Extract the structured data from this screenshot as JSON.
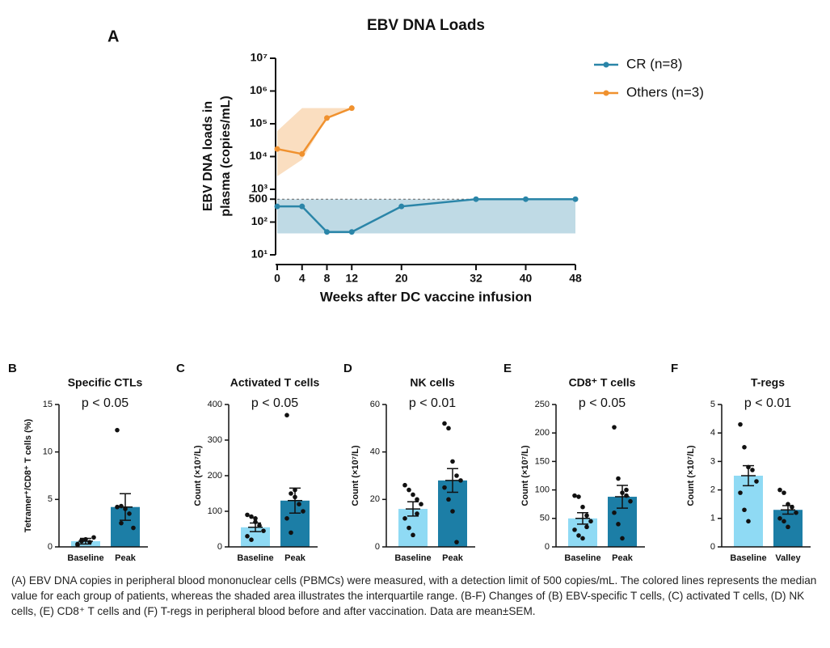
{
  "chart_data": [
    {
      "type": "line",
      "panel": "A",
      "title": "EBV DNA Loads",
      "x_label": "Weeks after DC vaccine infusion",
      "y_label": [
        "EBV DNA loads in",
        "plasma (copies/mL)"
      ],
      "x": [
        0,
        4,
        8,
        12,
        20,
        32,
        40,
        48
      ],
      "xlim": [
        0,
        48
      ],
      "xticks": [
        0,
        4,
        8,
        12,
        20,
        32,
        40,
        48
      ],
      "log_y": true,
      "ylim": [
        10,
        10000000
      ],
      "yticks": [
        {
          "value": 10,
          "label": "10¹"
        },
        {
          "value": 100,
          "label": "10²"
        },
        500,
        {
          "value": 1000,
          "label": "10³"
        },
        {
          "value": 10000,
          "label": "10⁴"
        },
        {
          "value": 100000,
          "label": "10⁵"
        },
        {
          "value": 1000000,
          "label": "10⁶"
        },
        {
          "value": 10000000,
          "label": "10⁷"
        }
      ],
      "detection_limit": 500,
      "legend": "upper right",
      "series": [
        {
          "name": "CR (n=8)",
          "color": "#2a85a8",
          "values": [
            300,
            300,
            50,
            50,
            300,
            500,
            500,
            500
          ],
          "band_lower": [
            45,
            45,
            45,
            45,
            45,
            45,
            45,
            45
          ],
          "band_upper": [
            500,
            500,
            500,
            500,
            500,
            500,
            500,
            500
          ]
        },
        {
          "name": "Others (n=3)",
          "color": "#f0912e",
          "values": [
            17000,
            12000,
            150000,
            300000,
            null,
            null,
            null,
            null
          ],
          "band_lower": [
            2500,
            8000,
            150000,
            300000,
            null,
            null,
            null,
            null
          ],
          "band_upper": [
            60000,
            300000,
            300000,
            300000,
            null,
            null,
            null,
            null
          ]
        }
      ]
    },
    {
      "type": "bar",
      "panel": "B",
      "title": "Specific CTLs",
      "annotation": "p < 0.05",
      "y_label": "Tetramer⁺/CD8⁺ T cells (%)",
      "categories": [
        "Baseline",
        "Peak"
      ],
      "colors": [
        "#8fdaf4",
        "#1c7ea6"
      ],
      "values": [
        0.6,
        4.2
      ],
      "errors": [
        0.3,
        1.4
      ],
      "points": [
        [
          0.3,
          0.6,
          0.8,
          0.5,
          1.0,
          0.2,
          0.7
        ],
        [
          12.3,
          4.3,
          4.0,
          3.5,
          2.0,
          4.2,
          2.5
        ]
      ],
      "ylim": [
        0,
        15
      ],
      "yticks": [
        0,
        5,
        10,
        15
      ]
    },
    {
      "type": "bar",
      "panel": "C",
      "title": "Activated T cells",
      "annotation": "p < 0.05",
      "y_label": "Count (×10⁷/L)",
      "categories": [
        "Baseline",
        "Peak"
      ],
      "colors": [
        "#8fdaf4",
        "#1c7ea6"
      ],
      "values": [
        55,
        130
      ],
      "errors": [
        12,
        35
      ],
      "points": [
        [
          90,
          85,
          70,
          60,
          45,
          30,
          20,
          80
        ],
        [
          370,
          150,
          140,
          120,
          100,
          80,
          40,
          160
        ]
      ],
      "ylim": [
        0,
        400
      ],
      "yticks": [
        0,
        100,
        200,
        300,
        400
      ]
    },
    {
      "type": "bar",
      "panel": "D",
      "title": "NK cells",
      "annotation": "p < 0.01",
      "y_label": "Count (×10⁷/L)",
      "categories": [
        "Baseline",
        "Peak"
      ],
      "colors": [
        "#8fdaf4",
        "#1c7ea6"
      ],
      "values": [
        16,
        28
      ],
      "errors": [
        3,
        5
      ],
      "points": [
        [
          26,
          24,
          22,
          20,
          18,
          12,
          8,
          5,
          14
        ],
        [
          52,
          50,
          36,
          30,
          28,
          25,
          20,
          15,
          2
        ]
      ],
      "ylim": [
        0,
        60
      ],
      "yticks": [
        0,
        20,
        40,
        60
      ]
    },
    {
      "type": "bar",
      "panel": "E",
      "title": "CD8⁺ T cells",
      "annotation": "p < 0.05",
      "y_label": "Count (×10⁷/L)",
      "categories": [
        "Baseline",
        "Peak"
      ],
      "colors": [
        "#8fdaf4",
        "#1c7ea6"
      ],
      "values": [
        50,
        88
      ],
      "errors": [
        10,
        20
      ],
      "points": [
        [
          90,
          88,
          70,
          55,
          45,
          30,
          20,
          15,
          35
        ],
        [
          210,
          120,
          95,
          90,
          80,
          60,
          40,
          15,
          100
        ]
      ],
      "ylim": [
        0,
        250
      ],
      "yticks": [
        0,
        50,
        100,
        150,
        200,
        250
      ]
    },
    {
      "type": "bar",
      "panel": "F",
      "title": "T-regs",
      "annotation": "p < 0.01",
      "y_label": "Count (×10⁷/L)",
      "categories": [
        "Baseline",
        "Valley"
      ],
      "colors": [
        "#8fdaf4",
        "#1c7ea6"
      ],
      "values": [
        2.5,
        1.3
      ],
      "errors": [
        0.35,
        0.15
      ],
      "points": [
        [
          4.3,
          3.5,
          2.8,
          2.7,
          2.3,
          1.9,
          1.3,
          0.9
        ],
        [
          2.0,
          1.9,
          1.5,
          1.4,
          1.2,
          1.0,
          0.9,
          0.7
        ]
      ],
      "ylim": [
        0,
        5
      ],
      "yticks": [
        0,
        1,
        2,
        3,
        4,
        5
      ]
    }
  ],
  "caption": "(A) EBV DNA copies in peripheral blood mononuclear cells (PBMCs) were measured, with a detection limit of 500 copies/mL. The colored lines represents the median value for each group of patients, whereas the shaded area illustrates the interquartile range. (B-F) Changes of (B) EBV-specific T cells, (C) activated T cells, (D) NK cells, (E) CD8⁺ T cells and (F) T-regs in peripheral blood before and after vaccination. Data are mean±SEM."
}
